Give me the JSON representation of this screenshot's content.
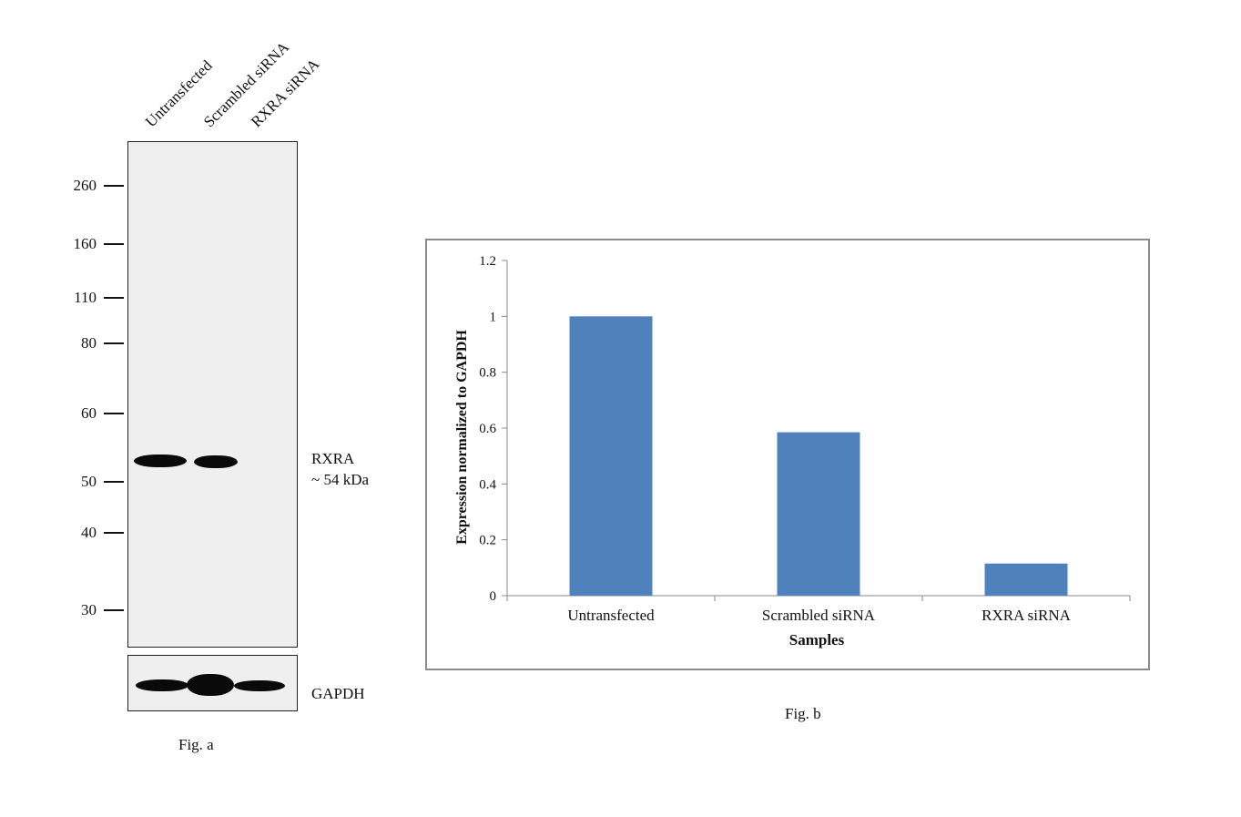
{
  "fig_a": {
    "lanes": [
      "Untransfected",
      "Scrambled siRNA",
      "RXRA siRNA"
    ],
    "markers": [
      "260",
      "160",
      "110",
      "80",
      "60",
      "50",
      "40",
      "30"
    ],
    "target_label": "RXRA",
    "target_size": "~ 54 kDa",
    "loading_control": "GAPDH",
    "caption": "Fig. a"
  },
  "fig_b": {
    "caption": "Fig. b"
  },
  "chart_data": {
    "type": "bar",
    "categories": [
      "Untransfected",
      "Scrambled siRNA",
      "RXRA siRNA"
    ],
    "values": [
      1.0,
      0.585,
      0.115
    ],
    "title": "",
    "xlabel": "Samples",
    "ylabel": "Expression normalized to GAPDH",
    "ylim": [
      0,
      1.2
    ],
    "yticks": [
      "0",
      "0.2",
      "0.4",
      "0.6",
      "0.8",
      "1",
      "1.2"
    ],
    "grid": false,
    "legend": "none",
    "bar_color": "#4f81bd"
  }
}
